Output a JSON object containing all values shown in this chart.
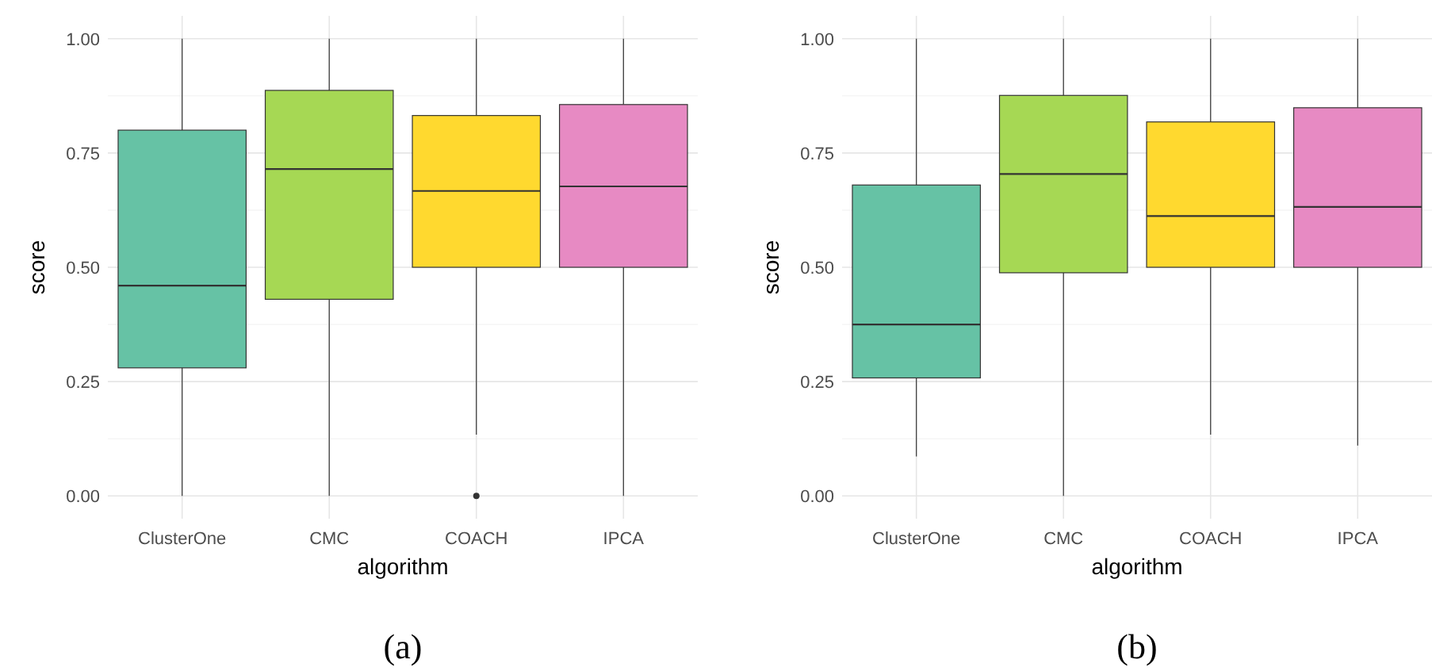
{
  "chart_data": [
    {
      "type": "box",
      "xlabel": "algorithm",
      "ylabel": "score",
      "categories": [
        "ClusterOne",
        "CMC",
        "COACH",
        "IPCA"
      ],
      "colors": [
        "#66c2a5",
        "#a6d854",
        "#ffd92f",
        "#e78ac3"
      ],
      "ylim": [
        -0.05,
        1.05
      ],
      "yticks": [
        {
          "value": 0,
          "label": "0.00"
        },
        {
          "value": 0.25,
          "label": "0.25"
        },
        {
          "value": 0.5,
          "label": "0.50"
        },
        {
          "value": 0.75,
          "label": "0.75"
        },
        {
          "value": 1,
          "label": "1.00"
        }
      ],
      "grid": true,
      "annotations": [
        "(a)"
      ],
      "boxes": [
        {
          "low": 0,
          "q1": 0.28,
          "median": 0.46,
          "q3": 0.8,
          "high": 1
        },
        {
          "low": 0,
          "q1": 0.43,
          "median": 0.715,
          "q3": 0.887,
          "high": 1
        },
        {
          "low": 0.134,
          "q1": 0.5,
          "median": 0.667,
          "q3": 0.832,
          "high": 1,
          "outliers": [
            0
          ]
        },
        {
          "low": 0,
          "q1": 0.5,
          "median": 0.677,
          "q3": 0.856,
          "high": 1
        }
      ]
    },
    {
      "type": "box",
      "xlabel": "algorithm",
      "ylabel": "score",
      "categories": [
        "ClusterOne",
        "CMC",
        "COACH",
        "IPCA"
      ],
      "colors": [
        "#66c2a5",
        "#a6d854",
        "#ffd92f",
        "#e78ac3"
      ],
      "ylim": [
        -0.05,
        1.05
      ],
      "yticks": [
        {
          "value": 0,
          "label": "0.00"
        },
        {
          "value": 0.25,
          "label": "0.25"
        },
        {
          "value": 0.5,
          "label": "0.50"
        },
        {
          "value": 0.75,
          "label": "0.75"
        },
        {
          "value": 1,
          "label": "1.00"
        }
      ],
      "grid": true,
      "annotations": [
        "(b)"
      ],
      "boxes": [
        {
          "low": 0.086,
          "q1": 0.258,
          "median": 0.375,
          "q3": 0.68,
          "high": 1
        },
        {
          "low": 0,
          "q1": 0.488,
          "median": 0.704,
          "q3": 0.876,
          "high": 1
        },
        {
          "low": 0.134,
          "q1": 0.5,
          "median": 0.612,
          "q3": 0.818,
          "high": 1
        },
        {
          "low": 0.11,
          "q1": 0.5,
          "median": 0.632,
          "q3": 0.849,
          "high": 1
        }
      ]
    }
  ]
}
